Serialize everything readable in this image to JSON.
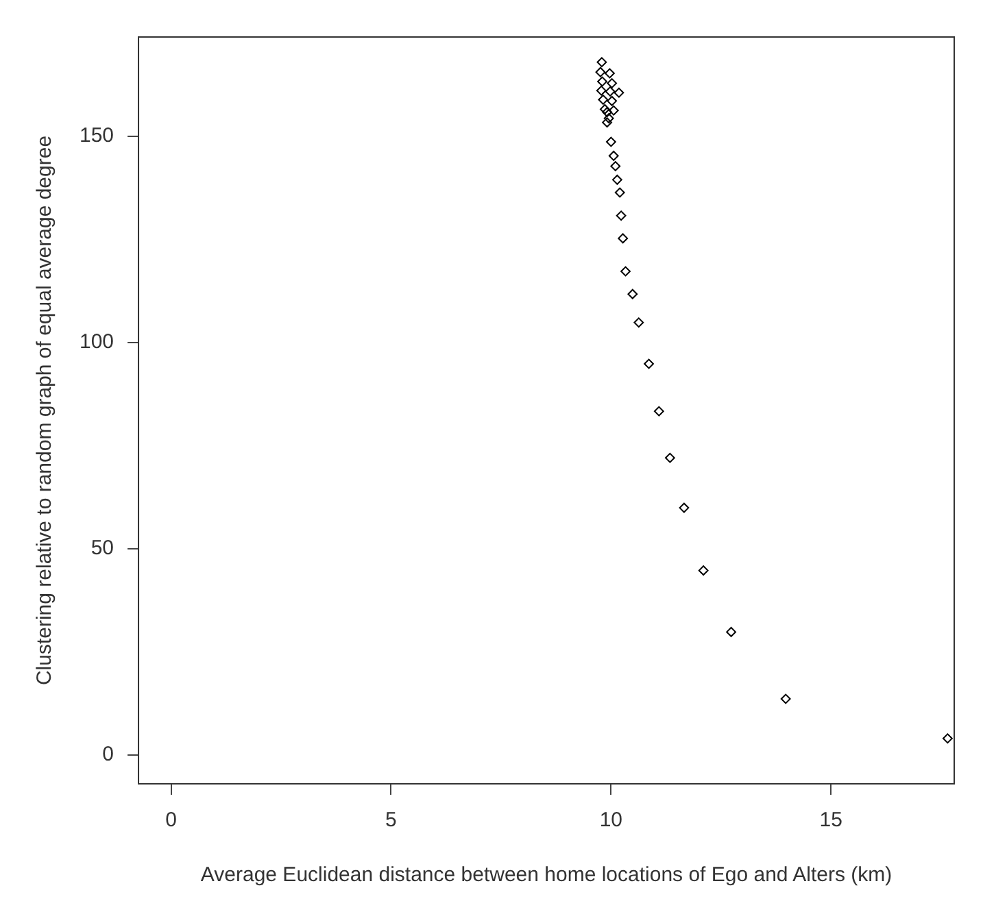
{
  "chart_data": {
    "type": "scatter",
    "xlabel": "Average Euclidean distance between home locations of Ego and Alters (km)",
    "ylabel": "Clustering relative to random graph of equal average degree",
    "xlim": [
      -0.74,
      17.8
    ],
    "ylim": [
      -7,
      174
    ],
    "xticks": [
      0,
      5,
      10,
      15
    ],
    "yticks": [
      0,
      50,
      100,
      150
    ],
    "grid": false,
    "legend": false,
    "marker": "diamond",
    "series": [
      {
        "color": "#000000",
        "x": [
          9.79,
          9.76,
          9.97,
          9.8,
          10.02,
          9.78,
          9.98,
          10.18,
          9.82,
          10.02,
          9.86,
          10.06,
          9.95,
          9.91,
          9.91,
          10.0,
          10.06,
          10.1,
          10.14,
          10.2,
          10.23,
          10.27,
          10.33,
          10.49,
          10.63,
          10.86,
          11.09,
          11.34,
          11.66,
          12.1,
          12.73,
          13.97,
          17.65
        ],
        "values": [
          167.9,
          165.5,
          165.2,
          163.2,
          162.8,
          161,
          160.8,
          160.5,
          158.8,
          158.5,
          156.5,
          156.2,
          154.3,
          155.8,
          153.3,
          148.6,
          145.2,
          142.7,
          139.4,
          136.3,
          130.7,
          125.2,
          117.2,
          111.7,
          104.8,
          94.8,
          83.3,
          72.0,
          59.9,
          44.7,
          29.8,
          13.6,
          4.0
        ]
      }
    ]
  }
}
